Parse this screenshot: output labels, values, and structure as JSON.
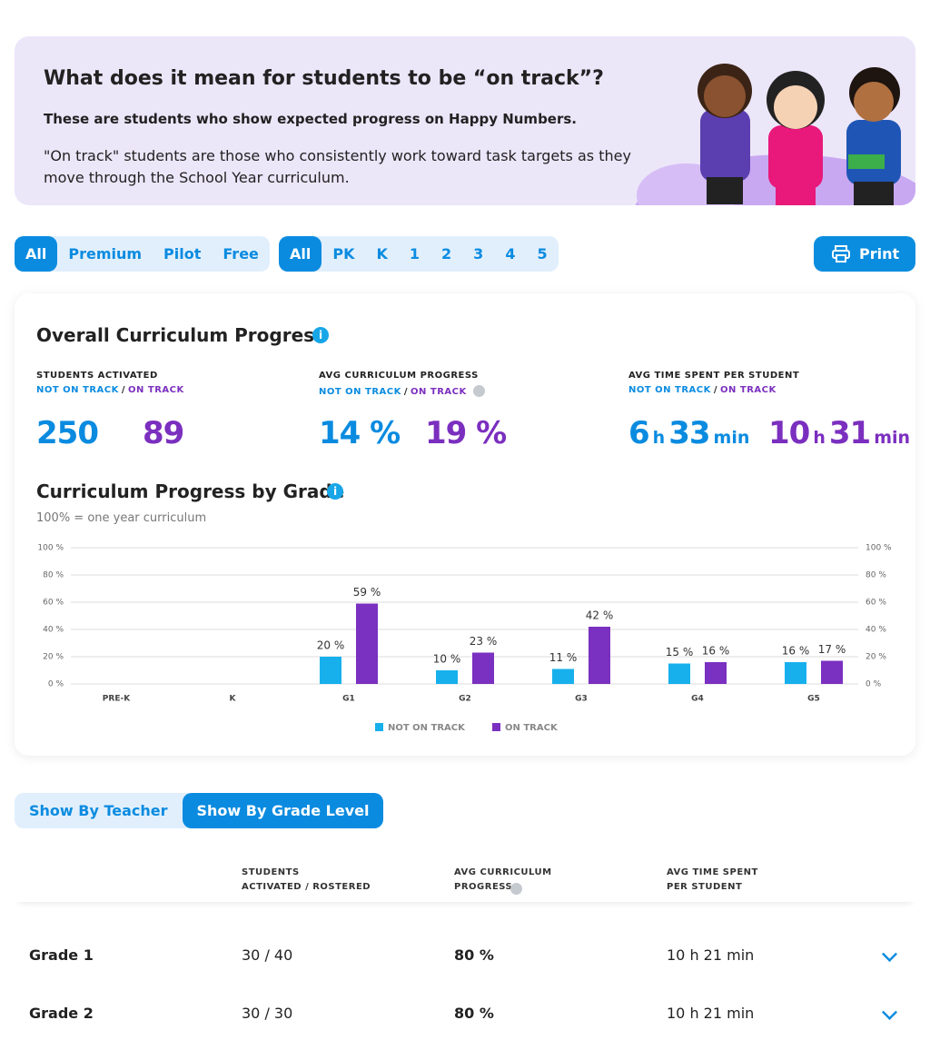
{
  "banner": {
    "title": "What does it mean for students to be “on track”?",
    "subtitle": "These are students who show expected progress on Happy Numbers.",
    "body": "\"On track\" students are those who consistently work toward task targets as they move through the School Year curriculum."
  },
  "filters": {
    "plans": [
      "All",
      "Premium",
      "Pilot",
      "Free"
    ],
    "grades": [
      "All",
      "PK",
      "K",
      "1",
      "2",
      "3",
      "4",
      "5"
    ],
    "print": "Print"
  },
  "overview": {
    "title": "Overall Curriculum Progress",
    "metrics": [
      {
        "label": "STUDENTS ACTIVATED",
        "legend": [
          "NOT ON TRACK",
          "/",
          "ON TRACK"
        ],
        "values": [
          [
            "250"
          ],
          [
            "89"
          ]
        ]
      },
      {
        "label": "AVG CURRICULUM PROGRESS",
        "legend": [
          "NOT ON TRACK",
          "/",
          "ON TRACK"
        ],
        "values": [
          [
            "14 %"
          ],
          [
            "19 %"
          ]
        ]
      },
      {
        "label": "AVG TIME SPENT PER STUDENT",
        "legend": [
          "NOT ON TRACK",
          "/",
          "ON TRACK"
        ],
        "values": [
          [
            "6",
            "h",
            "33",
            "min"
          ],
          [
            "10",
            "h",
            "31",
            "min"
          ]
        ]
      }
    ]
  },
  "chart_data": {
    "type": "bar",
    "title": "Curriculum Progress by Grade",
    "subtitle": "100% = one year curriculum",
    "categories": [
      "PRE-K",
      "K",
      "G1",
      "G2",
      "G3",
      "G4",
      "G5"
    ],
    "series": [
      {
        "name": "NOT ON TRACK",
        "color": "#17b0ec",
        "values": [
          null,
          null,
          20,
          10,
          11,
          15,
          16
        ],
        "value_labels": [
          null,
          null,
          "20 %",
          "10 %",
          "11 %",
          "15 %",
          "16 %"
        ]
      },
      {
        "name": "ON TRACK",
        "color": "#7a30c0",
        "values": [
          null,
          null,
          59,
          23,
          42,
          16,
          17
        ],
        "value_labels": [
          null,
          null,
          "59 %",
          "23 %",
          "42 %",
          "16 %",
          "17 %"
        ]
      }
    ],
    "ylim": [
      0,
      100
    ],
    "yticks": [
      {
        "value": 0,
        "label": "0 %"
      },
      {
        "value": 20,
        "label": "20 %"
      },
      {
        "value": 40,
        "label": "40 %"
      },
      {
        "value": 60,
        "label": "60 %"
      },
      {
        "value": 80,
        "label": "80 %"
      },
      {
        "value": 100,
        "label": "100 %"
      }
    ],
    "y2lim": [
      0,
      100
    ],
    "y2ticks": [
      {
        "value": 0,
        "label": "0 %"
      },
      {
        "value": 20,
        "label": "20 %"
      },
      {
        "value": 40,
        "label": "40 %"
      },
      {
        "value": 60,
        "label": "60 %"
      },
      {
        "value": 80,
        "label": "80 %"
      },
      {
        "value": 100,
        "label": "100 %"
      }
    ],
    "grid": true
  },
  "view_toggle": [
    "Show By Teacher",
    "Show By Grade Level"
  ],
  "table": {
    "headers": [
      [
        "STUDENTS",
        "ACTIVATED / ROSTERED"
      ],
      [
        "AVG CURRICULUM",
        "PROGRESS"
      ],
      [
        "AVG TIME SPENT",
        "PER STUDENT"
      ]
    ],
    "rows": [
      [
        "Grade 1",
        "30 / 40",
        "80 %",
        "10 h 21 min"
      ],
      [
        "Grade 2",
        "30 / 30",
        "80 %",
        "10 h 21 min"
      ]
    ]
  }
}
